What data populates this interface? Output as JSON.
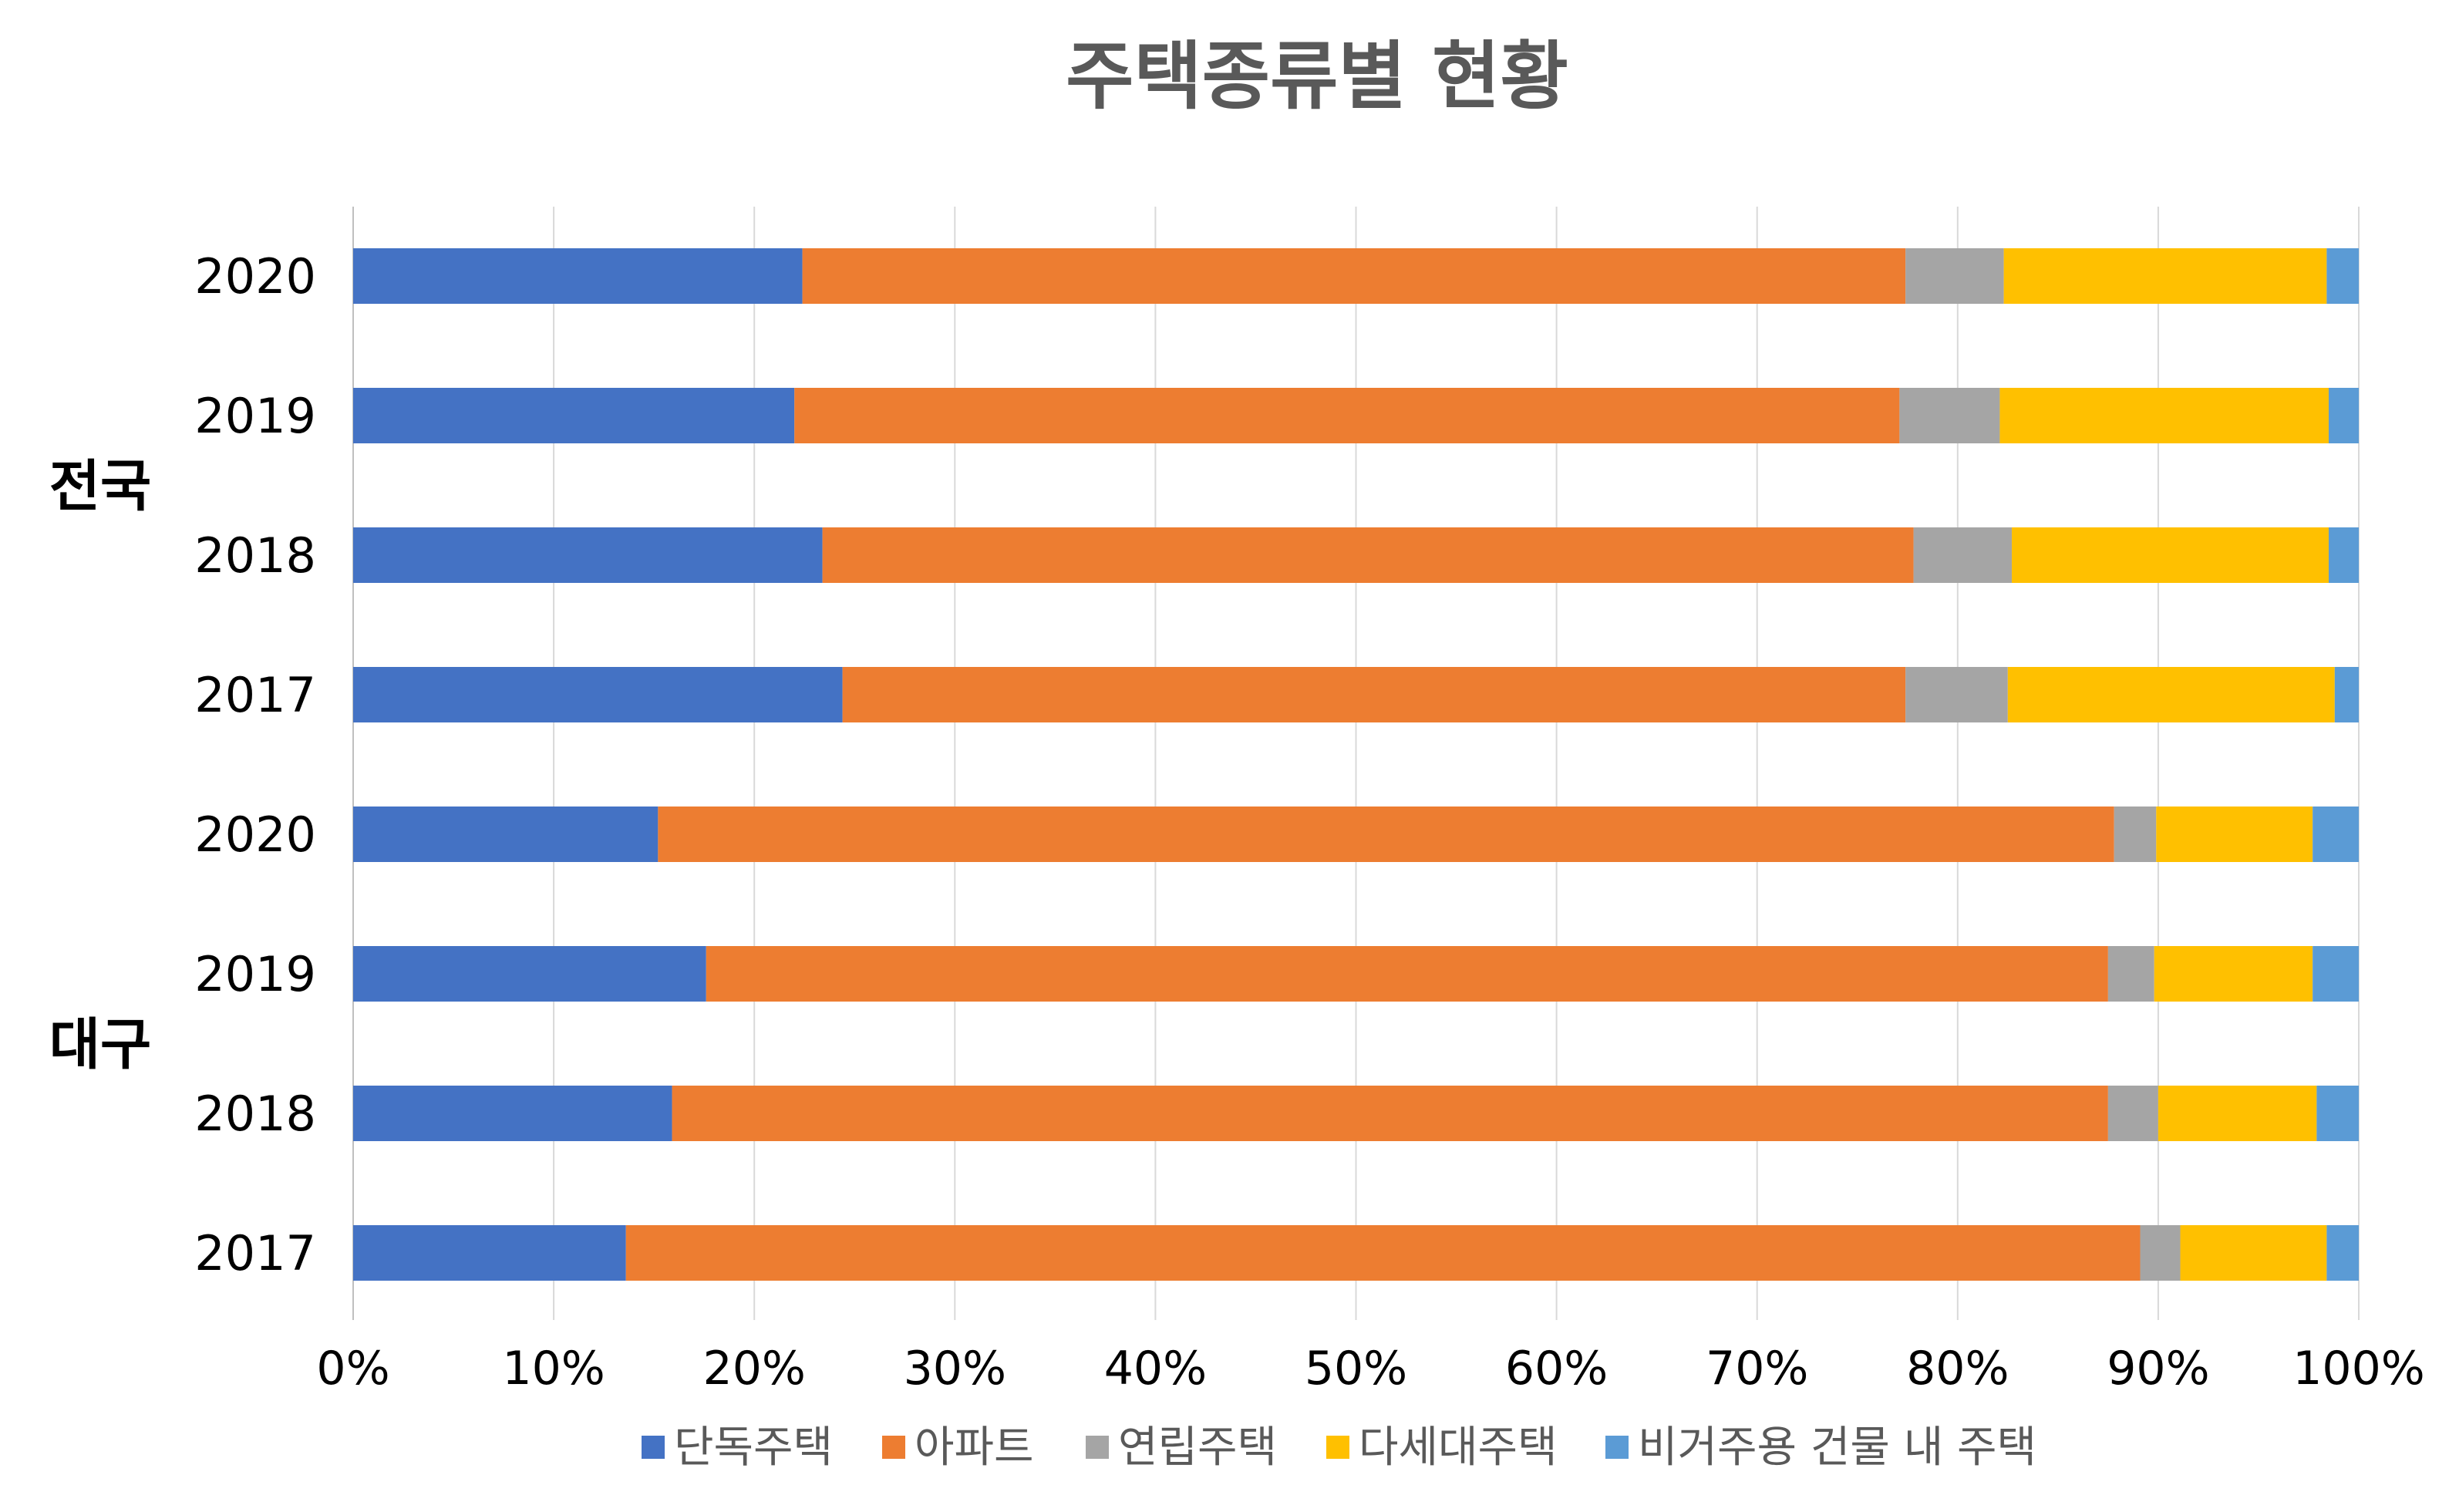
{
  "chart_data": {
    "type": "bar",
    "orientation": "horizontal",
    "stacked": "percent",
    "title": "주택종류별 현황",
    "groups": [
      {
        "label": "전국",
        "categories": [
          "2020",
          "2019",
          "2018",
          "2017"
        ]
      },
      {
        "label": "대구",
        "categories": [
          "2020",
          "2019",
          "2018",
          "2017"
        ]
      }
    ],
    "categories": [
      "2020",
      "2019",
      "2018",
      "2017",
      "2020",
      "2019",
      "2018",
      "2017"
    ],
    "series": [
      {
        "name": "단독주택",
        "color": "#4472C4",
        "values": [
          22.4,
          22.0,
          23.4,
          24.4,
          15.2,
          17.6,
          15.9,
          13.6
        ]
      },
      {
        "name": "아파트",
        "color": "#ED7D31",
        "values": [
          55.0,
          55.1,
          54.4,
          53.0,
          72.6,
          69.9,
          71.6,
          75.5
        ]
      },
      {
        "name": "연립주택",
        "color": "#A5A5A5",
        "values": [
          4.9,
          5.0,
          4.9,
          5.1,
          2.1,
          2.3,
          2.5,
          2.0
        ]
      },
      {
        "name": "다세대주택",
        "color": "#FFC000",
        "values": [
          16.1,
          16.4,
          15.8,
          16.3,
          7.8,
          7.9,
          7.9,
          7.3
        ]
      },
      {
        "name": "비거주용 건물 내 주택",
        "color": "#5B9BD5",
        "values": [
          1.6,
          1.5,
          1.5,
          1.2,
          2.3,
          2.3,
          2.1,
          1.6
        ]
      }
    ],
    "x_ticks": [
      "0%",
      "10%",
      "20%",
      "30%",
      "40%",
      "50%",
      "60%",
      "70%",
      "80%",
      "90%",
      "100%"
    ],
    "xlim": [
      0,
      100
    ],
    "grid": "vertical",
    "legend": "bottom"
  }
}
